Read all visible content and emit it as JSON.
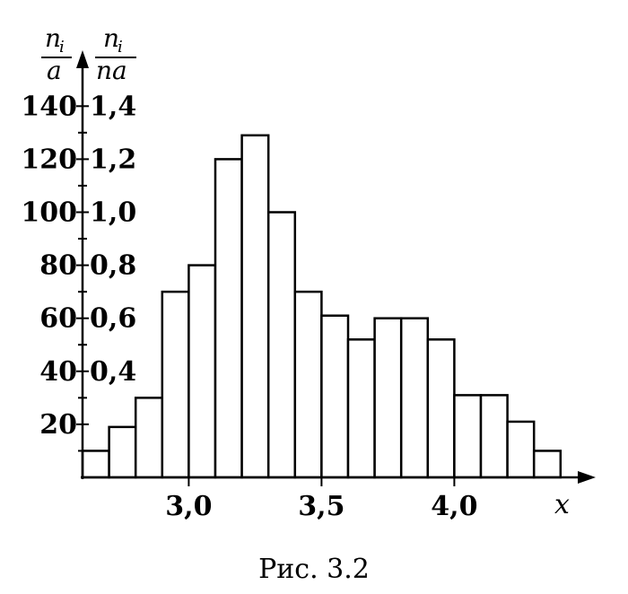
{
  "chart_data": {
    "type": "bar",
    "title": "",
    "caption": "Рис. 3.2",
    "xlabel": "x",
    "ylabel_left": {
      "num": "n",
      "sub": "i",
      "den": "a"
    },
    "ylabel_right": {
      "num": "n",
      "sub": "i",
      "den": "na"
    },
    "bin_width": 0.1,
    "x_start": 2.6,
    "xlim": [
      2.6,
      4.9
    ],
    "ylim": [
      0,
      150
    ],
    "x_ticks": [
      3.0,
      3.5,
      4.0
    ],
    "x_tick_labels": [
      "3,0",
      "3,5",
      "4,0"
    ],
    "y_ticks_left": [
      20,
      40,
      60,
      80,
      100,
      120,
      140
    ],
    "y_tick_labels_left": [
      "20",
      "40",
      "60",
      "80",
      "100",
      "120",
      "140"
    ],
    "y_ticks_right": [
      40,
      60,
      80,
      100,
      120,
      140
    ],
    "y_tick_labels_right": [
      "0,4",
      "0,6",
      "0,8",
      "1,0",
      "1,2",
      "1,4"
    ],
    "values": [
      10,
      19,
      30,
      70,
      80,
      120,
      129,
      100,
      70,
      61,
      52,
      60,
      60,
      52,
      31,
      31,
      21,
      10
    ]
  }
}
